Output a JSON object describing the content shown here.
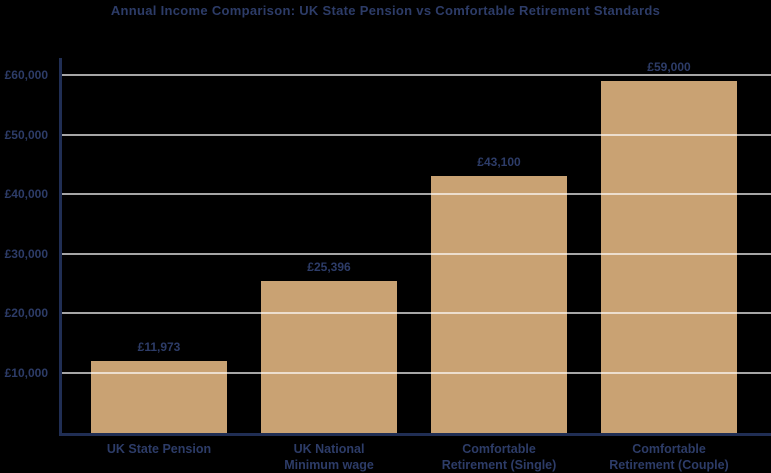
{
  "page": {
    "background": "#000000"
  },
  "chart_data": {
    "type": "bar",
    "title": "Annual Income Comparison: UK State Pension vs Comfortable Retirement Standards",
    "categories": [
      "UK State Pension",
      "UK National Minimum wage",
      "Comfortable Retirement (Single)",
      "Comfortable Retirement (Couple)"
    ],
    "category_label_lines": [
      [
        "UK State Pension"
      ],
      [
        "UK National",
        "Minimum wage"
      ],
      [
        "Comfortable",
        "Retirement (Single)"
      ],
      [
        "Comfortable",
        "Retirement (Couple)"
      ]
    ],
    "values": [
      11973,
      25396,
      43100,
      59000
    ],
    "value_labels": [
      "£11,973",
      "£25,396",
      "£43,100",
      "£59,000"
    ],
    "yticks": [
      {
        "value": 10000,
        "label": "£10,000"
      },
      {
        "value": 20000,
        "label": "£20,000"
      },
      {
        "value": 30000,
        "label": "£30,000"
      },
      {
        "value": 40000,
        "label": "£40,000"
      },
      {
        "value": 50000,
        "label": "£50,000"
      },
      {
        "value": 60000,
        "label": "£60,000"
      }
    ],
    "ylim": [
      0,
      63000
    ],
    "xlabel": "",
    "ylabel": "",
    "grid": "horizontal",
    "legend": "none",
    "colors": {
      "background": "#000000",
      "bar": "#c9a273",
      "gridline": "#ffffffa6",
      "axis": "#202e54",
      "text": "#2d3c68"
    }
  }
}
